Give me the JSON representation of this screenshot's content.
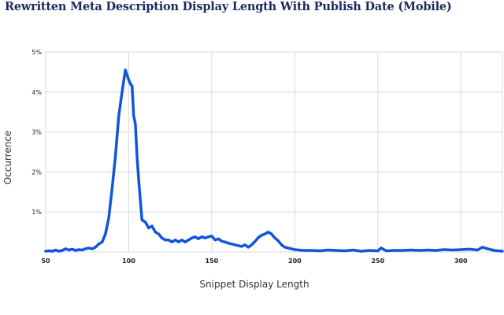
{
  "chart_data": {
    "type": "line",
    "title": "Rewritten Meta Description Display Length With Publish Date (Mobile)",
    "xlabel": "Snippet Display Length",
    "ylabel": "Occurrence",
    "xlim": [
      50,
      325
    ],
    "ylim": [
      0,
      5
    ],
    "xticks": [
      50,
      100,
      150,
      200,
      250,
      300
    ],
    "xtick_labels": [
      "50",
      "100",
      "150",
      "200",
      "250",
      "300"
    ],
    "yticks": [
      1,
      2,
      3,
      4,
      5
    ],
    "ytick_labels": [
      "1%",
      "2%",
      "3%",
      "4%",
      "5%"
    ],
    "y_unit": "%",
    "grid": true,
    "line_color": "#1155dd",
    "series": [
      {
        "name": "",
        "x": [
          50,
          52,
          54,
          56,
          58,
          60,
          62,
          64,
          66,
          68,
          70,
          72,
          74,
          76,
          78,
          80,
          82,
          84,
          86,
          88,
          90,
          92,
          94,
          96,
          98,
          100,
          101,
          102,
          103,
          104,
          105,
          106,
          108,
          110,
          112,
          114,
          116,
          118,
          120,
          122,
          124,
          126,
          128,
          130,
          132,
          134,
          136,
          138,
          140,
          142,
          144,
          146,
          148,
          150,
          152,
          154,
          156,
          158,
          160,
          162,
          164,
          166,
          168,
          170,
          172,
          174,
          176,
          178,
          180,
          182,
          184,
          186,
          188,
          190,
          192,
          194,
          196,
          198,
          200,
          205,
          210,
          215,
          220,
          225,
          230,
          235,
          240,
          245,
          250,
          252,
          255,
          260,
          265,
          270,
          275,
          280,
          285,
          290,
          295,
          300,
          305,
          310,
          313,
          316,
          320,
          325
        ],
        "y": [
          0.02,
          0.03,
          0.02,
          0.05,
          0.02,
          0.04,
          0.08,
          0.05,
          0.07,
          0.04,
          0.06,
          0.05,
          0.08,
          0.1,
          0.08,
          0.12,
          0.2,
          0.25,
          0.45,
          0.85,
          1.6,
          2.4,
          3.4,
          4.0,
          4.55,
          4.3,
          4.2,
          4.15,
          3.4,
          3.2,
          2.4,
          1.8,
          0.8,
          0.75,
          0.6,
          0.65,
          0.5,
          0.45,
          0.35,
          0.3,
          0.3,
          0.25,
          0.3,
          0.25,
          0.3,
          0.25,
          0.3,
          0.35,
          0.38,
          0.33,
          0.38,
          0.35,
          0.38,
          0.4,
          0.3,
          0.33,
          0.27,
          0.25,
          0.22,
          0.2,
          0.18,
          0.16,
          0.14,
          0.18,
          0.12,
          0.18,
          0.26,
          0.36,
          0.42,
          0.45,
          0.5,
          0.45,
          0.35,
          0.28,
          0.18,
          0.12,
          0.1,
          0.08,
          0.06,
          0.04,
          0.04,
          0.03,
          0.05,
          0.04,
          0.03,
          0.05,
          0.02,
          0.04,
          0.03,
          0.1,
          0.03,
          0.04,
          0.04,
          0.05,
          0.04,
          0.05,
          0.04,
          0.06,
          0.05,
          0.06,
          0.07,
          0.05,
          0.12,
          0.08,
          0.04,
          0.02
        ]
      }
    ]
  }
}
